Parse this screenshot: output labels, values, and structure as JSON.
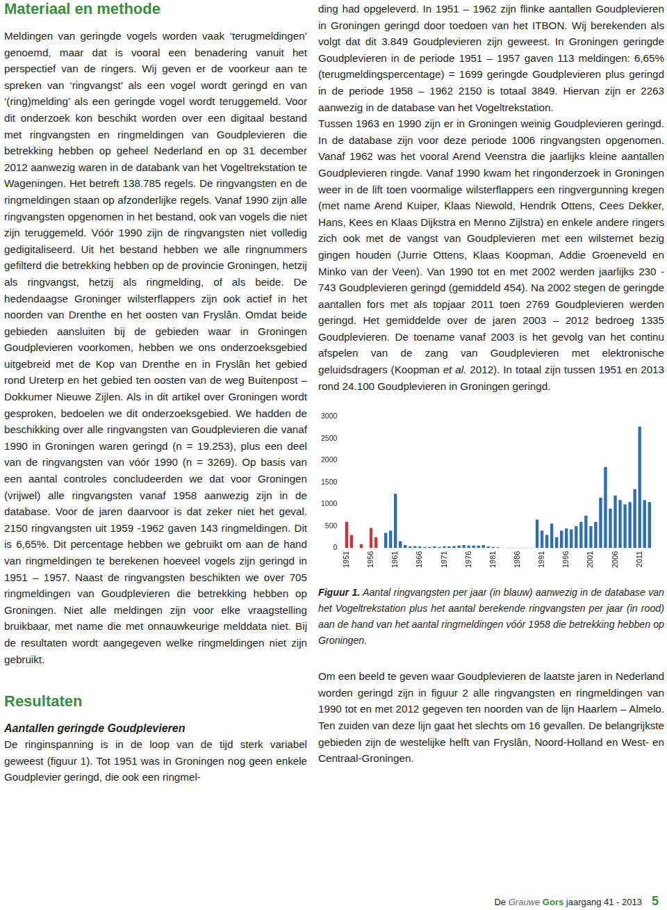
{
  "document": {
    "left_column": {
      "heading": "Materiaal en methode",
      "paragraphs": [
        "Meldingen van geringde vogels worden vaak ‘terugmeldingen’ genoemd, maar dat is vooral een benadering vanuit het perspectief van de ringers. Wij geven er de voorkeur aan te spreken van ‘ringvangst’ als een vogel wordt geringd en van ‘(ring)melding’ als een geringde vogel wordt teruggemeld. Voor dit onderzoek kon beschikt worden over een digitaal bestand met ringvangsten en ringmeldingen van Goudplevieren die betrekking hebben op geheel Nederland en op 31 december 2012 aanwezig waren in de databank van het Vogeltrekstation te Wageningen. Het betreft 138.785 regels. De ringvangsten en de ringmeldingen staan op afzonderlijke regels. Vanaf 1990 zijn alle ringvangsten opgenomen in het bestand, ook van vogels die niet zijn teruggemeld. Vóór 1990 zijn de ringvangsten niet volledig gedigitaliseerd. Uit het bestand hebben we alle ringnummers gefilterd die betrekking hebben op de provincie Groningen, hetzij als ringvangst, hetzij als ringmelding, of als beide. De hedendaagse Groninger wilsterflappers zijn ook actief in het noorden van Drenthe en het oosten van Fryslân. Omdat beide gebieden aansluiten bij de gebieden waar in Groningen Goudplevieren voorkomen, hebben we ons onderzoeksgebied uitgebreid met de Kop van Drenthe en in Fryslân het gebied rond Ureterp en het gebied ten oosten van de weg Buitenpost – Dokkumer Nieuwe Zijlen. Als in dit artikel over Groningen wordt gesproken, bedoelen we dit onderzoeksgebied. We hadden de beschikking over alle ringvangsten van Goudplevieren die vanaf 1990 in Groningen waren geringd (n = 19.253), plus een deel van de ringvangsten van vóór 1990 (n = 3269). Op basis van een aantal controles concludeerden we dat voor Groningen (vrijwel) alle ringvangsten vanaf 1958 aanwezig zijn in de database. Voor de jaren daarvoor is dat zeker niet het geval. 2150 ringvangsten uit 1959 -1962 gaven 143 ringmeldingen. Dit is 6,65%. Dit percentage hebben we gebruikt om aan de hand van ringmeldingen te berekenen hoeveel vogels zijn geringd in 1951 – 1957. Naast de ringvangsten beschikten we over 705 ringmeldingen van Goudplevieren die betrekking hebben op Groningen. Niet alle meldingen zijn voor elke vraagstelling bruikbaar, met name die met onnauwkeurige melddata niet. Bij de resultaten wordt aangegeven welke ringmeldingen niet zijn gebruikt."
      ],
      "section_heading": "Resultaten",
      "subheading": "Aantallen geringde Goudplevieren",
      "section_paragraphs": [
        "De ringinspanning is in de loop van de tijd sterk variabel geweest (figuur 1). Tot 1951 was in Groningen nog geen enkele Goudplevier geringd, die ook een ringmel-"
      ]
    },
    "right_column": {
      "paragraphs": [
        [
          {
            "text": "ding had opgeleverd. In 1951 – 1962 zijn flinke aantallen Goudplevieren in Groningen geringd door toedoen van het ITBON. Wij berekenden als volgt dat dit 3.849 Goudplevieren zijn geweest. In Groningen geringde Goudplevieren in de periode 1951 – 1957 gaven 113 meldingen: 6,65% (terugmeldingspercentage) = 1699 geringde Goudplevieren plus geringd in de periode 1958 – 1962 2150 is totaal 3849. Hiervan zijn er 2263 aanwezig in de database van het Vogeltrekstation."
          }
        ],
        [
          {
            "text": "Tussen 1963 en 1990 zijn er in Groningen weinig Goudplevieren geringd. In de database zijn voor deze periode 1006 ringvangsten opgenomen. Vanaf 1962 was het vooral Arend Veenstra die jaarlijks kleine aantallen Goudplevieren ringde. Vanaf 1990 kwam het ringonderzoek in Groningen weer in de lift toen voormalige wilsterflappers een ringvergunning kregen (met name Arend Kuiper, Klaas Niewold, Hendrik Ottens, Cees Dekker, Hans, Kees en Klaas Dijkstra en Menno Zijlstra) en enkele andere ringers zich ook met de vangst van Goudplevieren met een wilsternet bezig gingen houden (Jurrie Ottens, Klaas Koopman, Addie Groeneveld en Minko van der Veen). Van 1990 tot en met 2002 werden jaarlijks 230 - 743 Goudplevieren geringd (gemiddeld 454). Na 2002 stegen de geringde aantallen fors met als topjaar 2011 toen 2769 Goudplevieren werden geringd. Het gemiddelde over de jaren 2003 – 2012 bedroeg 1335 Goudplevieren. De toename vanaf 2003 is het gevolg van het continu afspelen van de zang van Goudplevieren met elektronische geluidsdragers (Koopman "
          },
          {
            "text": "et al.",
            "italic": true
          },
          {
            "text": " 2012). In totaal zijn tussen 1951 en 2013 rond 24.100 Goudplevieren in Groningen geringd."
          }
        ]
      ],
      "caption": {
        "lead": "Figuur 1.",
        "text": " Aantal ringvangsten per jaar (in blauw) aanwezig in de database van het Vogeltrekstation plus het aantal berekende ringvangsten per jaar (in rood) aan de hand van het aantal ringmeldingen vóór 1958 die betrekking hebben op Groningen."
      },
      "closing_paragraph": "Om een beeld te geven waar Goudplevieren de laatste jaren in Nederland worden geringd zijn in figuur 2 alle ringvangsten en ringmeldingen van 1990 tot en met 2012 gegeven ten noorden van de lijn Haarlem – Almelo. Ten zuiden van deze lijn gaat het slechts om 16 gevallen. De belangrijkste gebieden zijn de westelijke helft van Fryslân, Noord-Holland en West- en Centraal-Groningen."
    },
    "footer": {
      "runs": [
        {
          "text": "De "
        },
        {
          "text": "Grauwe",
          "italic": true,
          "color": "#6d6e71"
        },
        {
          "text": " Gors",
          "bold": true,
          "color": "#3b8d3e"
        },
        {
          "text": " jaargang 41 - 2013"
        }
      ],
      "page_number": "5"
    }
  },
  "chart_data": {
    "type": "bar",
    "categories": [
      "1951",
      null,
      null,
      null,
      null,
      "1956",
      null,
      null,
      null,
      null,
      "1961",
      null,
      null,
      null,
      null,
      "1966",
      null,
      null,
      null,
      null,
      "1971",
      null,
      null,
      null,
      null,
      "1976",
      null,
      null,
      null,
      null,
      "1981",
      null,
      null,
      null,
      null,
      "1986",
      null,
      null,
      null,
      null,
      "1991",
      null,
      null,
      null,
      null,
      "1996",
      null,
      null,
      null,
      null,
      "2001",
      null,
      null,
      null,
      null,
      "2006",
      null,
      null,
      null,
      null,
      "2011",
      null,
      null
    ],
    "values": [
      600,
      300,
      0,
      90,
      0,
      460,
      250,
      0,
      350,
      400,
      1240,
      160,
      70,
      40,
      50,
      40,
      30,
      30,
      40,
      30,
      40,
      40,
      50,
      60,
      70,
      60,
      60,
      60,
      70,
      40,
      30,
      20,
      10,
      10,
      10,
      10,
      10,
      10,
      10,
      650,
      400,
      300,
      560,
      250,
      400,
      450,
      430,
      500,
      600,
      743,
      500,
      600,
      1150,
      1850,
      900,
      1200,
      1100,
      1000,
      1050,
      1350,
      2769,
      1100,
      1050
    ],
    "colors": [
      "#c9353f",
      "#c9353f",
      "#c9353f",
      "#c9353f",
      "#c9353f",
      "#c9353f",
      "#c9353f",
      "#2e6db4",
      "#2e6db4",
      "#2e6db4",
      "#2e6db4",
      "#2e6db4",
      "#2e6db4",
      "#2e6db4",
      "#2e6db4",
      "#2e6db4",
      "#2e6db4",
      "#2e6db4",
      "#2e6db4",
      "#2e6db4",
      "#2e6db4",
      "#2e6db4",
      "#2e6db4",
      "#2e6db4",
      "#2e6db4",
      "#2e6db4",
      "#2e6db4",
      "#2e6db4",
      "#2e6db4",
      "#2e6db4",
      "#2e6db4",
      "#2e6db4",
      "#2e6db4",
      "#2e6db4",
      "#2e6db4",
      "#2e6db4",
      "#2e6db4",
      "#2e6db4",
      "#2e6db4",
      "#2e6db4",
      "#2e6db4",
      "#2e6db4",
      "#2e6db4",
      "#2e6db4",
      "#2e6db4",
      "#2e6db4",
      "#2e6db4",
      "#2e6db4",
      "#2e6db4",
      "#2e6db4",
      "#2e6db4",
      "#2e6db4",
      "#2e6db4",
      "#2e6db4",
      "#2e6db4",
      "#2e6db4",
      "#2e6db4",
      "#2e6db4",
      "#2e6db4",
      "#2e6db4",
      "#2e6db4",
      "#2e6db4",
      "#2e6db4"
    ],
    "ylim": [
      0,
      3000
    ],
    "yticks": [
      0,
      500,
      1000,
      1500,
      2000,
      2500,
      3000
    ],
    "grid": false
  }
}
